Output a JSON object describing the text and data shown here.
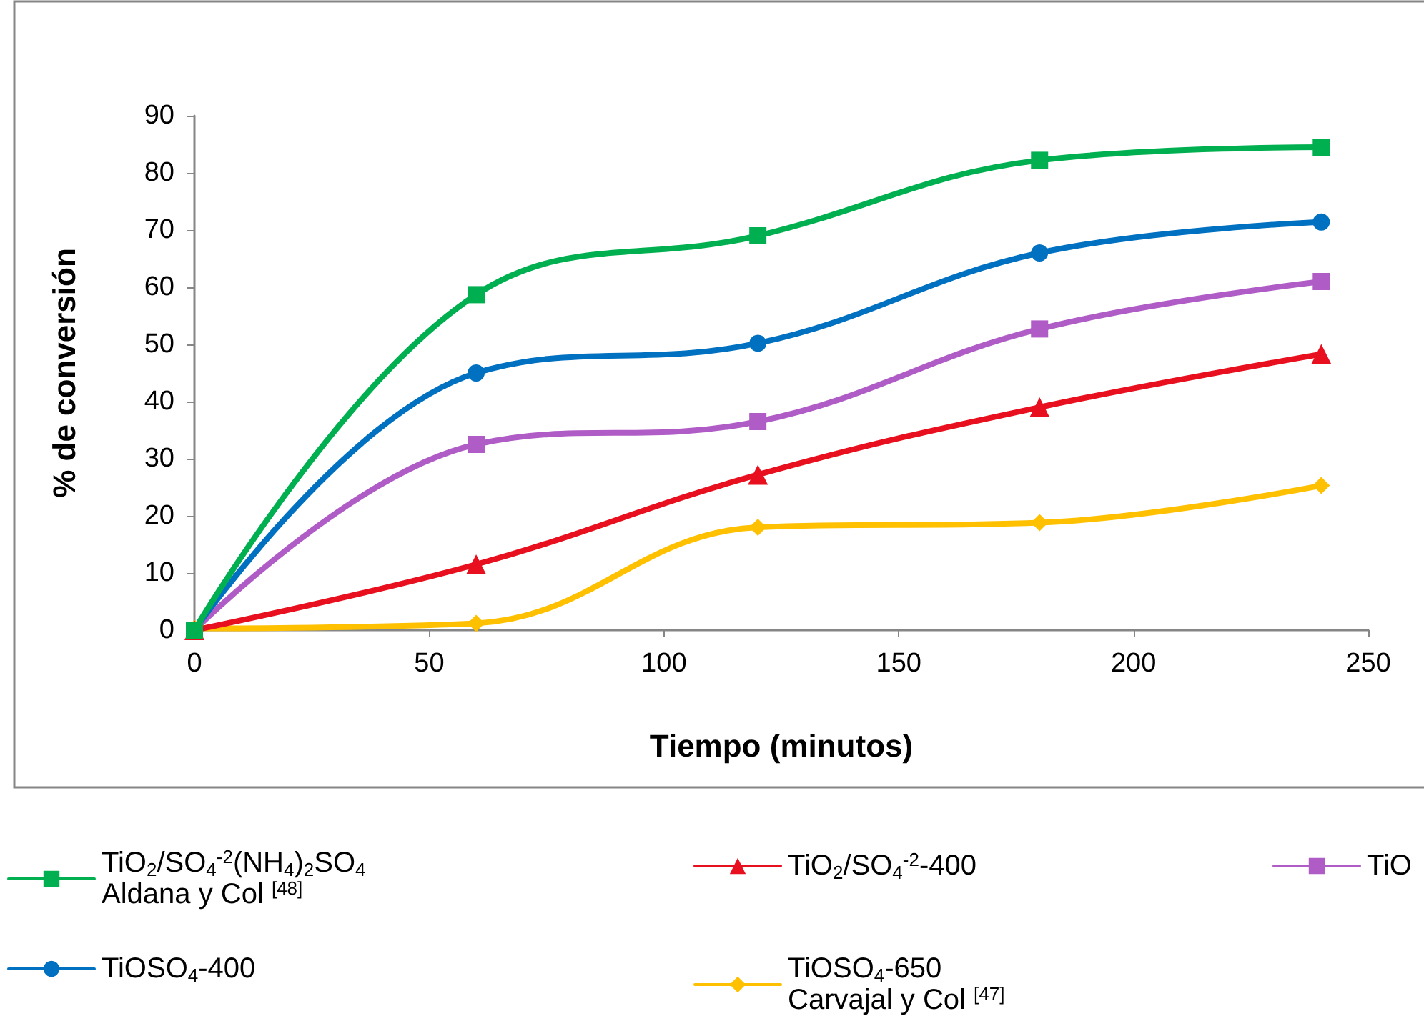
{
  "chart_data": {
    "type": "line",
    "xlabel": "Tiempo (minutos)",
    "ylabel": "% de conversión",
    "x": [
      0,
      60,
      120,
      180,
      240
    ],
    "xlim": [
      0,
      250
    ],
    "ylim": [
      0,
      90
    ],
    "xticks": [
      0,
      50,
      100,
      150,
      200,
      250
    ],
    "yticks": [
      0,
      10,
      20,
      30,
      40,
      50,
      60,
      70,
      80,
      90
    ],
    "legend": "bottom",
    "series": [
      {
        "name": "TiO$_{2}$/SO$_{4}$$^{-2}$(NH$_{4}$)$_{2}$SO$_{4}$\nAldana y Col $^{[48]}$",
        "color": "#00b050",
        "marker": "square",
        "values": [
          0,
          58.7,
          69,
          82.2,
          84.5
        ]
      },
      {
        "name": "TiOSO$_{4}$-400",
        "color": "#0070c0",
        "marker": "circle",
        "values": [
          0,
          45,
          50.2,
          66,
          71.4
        ]
      },
      {
        "name": "TiO$_{2}$/SO$_{4}$$^{-2}$-400",
        "color": "#e8101e",
        "marker": "triangle",
        "values": [
          0,
          11.5,
          27.2,
          39,
          48.3
        ]
      },
      {
        "name": "TiOSO$_{4}$-650\nCarvajal y Col $^{[47]}$",
        "color": "#ffc000",
        "marker": "diamond",
        "values": [
          0.3,
          1.2,
          18,
          18.8,
          25.3
        ]
      },
      {
        "name": "TiO",
        "color": "#b05cc6",
        "marker": "square",
        "values": [
          0,
          32.5,
          36.5,
          52.7,
          61
        ]
      }
    ]
  }
}
